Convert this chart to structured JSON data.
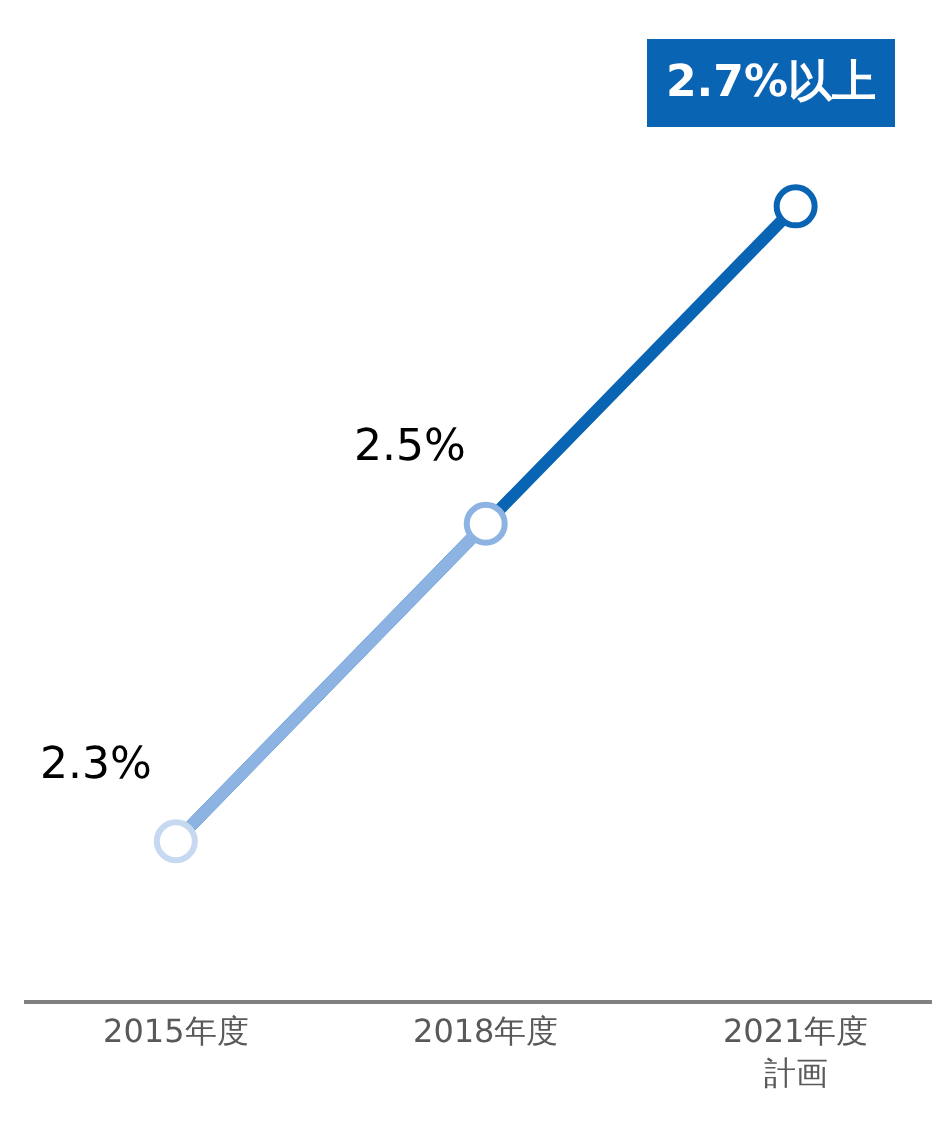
{
  "chart_data": {
    "type": "line",
    "categories": [
      "2015年度",
      "2018年度",
      "2021年度計画"
    ],
    "series": [
      {
        "values": [
          2.3,
          2.5,
          2.7
        ],
        "colors": [
          "#c6d9f0",
          "#8db3e2",
          "#0a64b4"
        ],
        "value_labels": [
          "2.3%",
          "2.5%",
          "2.7%以上"
        ]
      }
    ],
    "ylim": [
      2.2,
      2.83
    ],
    "marker": "circle",
    "line_style": "solid"
  }
}
